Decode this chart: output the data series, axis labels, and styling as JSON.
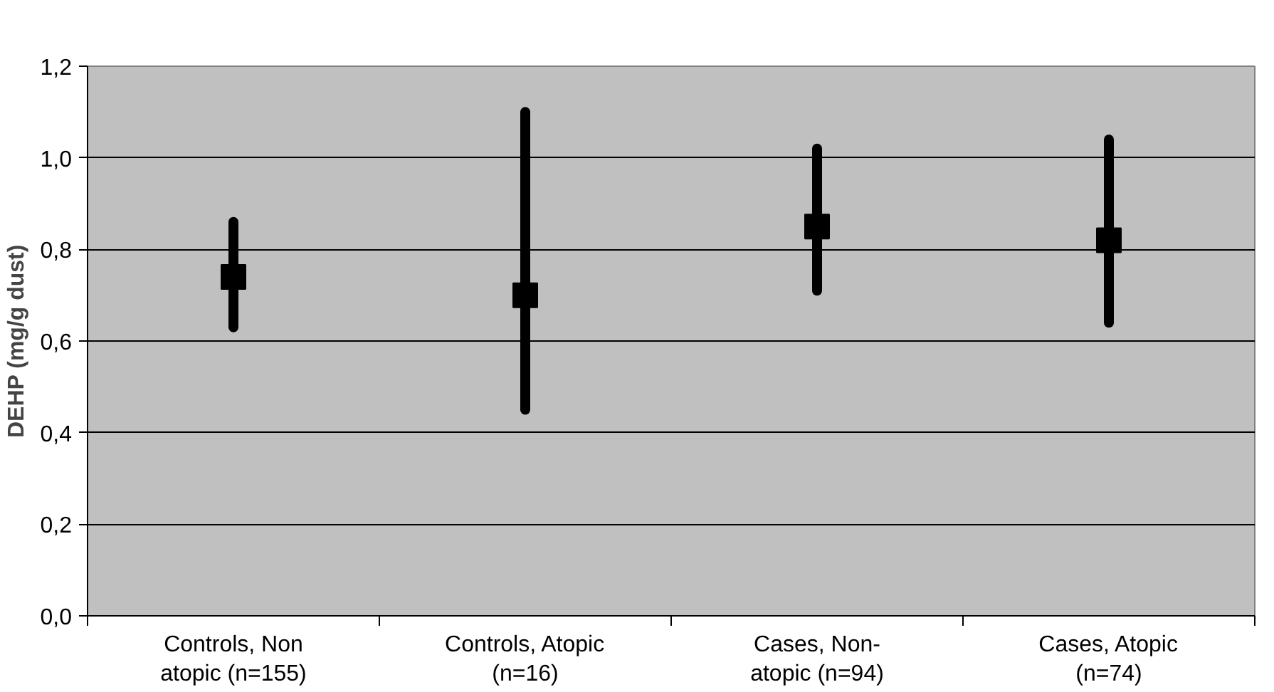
{
  "chart_data": {
    "type": "scatter",
    "ylabel": "DEHP (mg/g dust)",
    "categories": [
      "Controls, Non atopic (n=155)",
      "Controls, Atopic (n=16)",
      "Cases, Non-atopic (n=94)",
      "Cases, Atopic (n=74)"
    ],
    "series": [
      {
        "color": "#000000",
        "values": [
          0.74,
          0.7,
          0.85,
          0.82
        ],
        "errors": [
          [
            0.63,
            0.86
          ],
          [
            0.45,
            1.1
          ],
          [
            0.71,
            1.02
          ],
          [
            0.64,
            1.04
          ]
        ]
      }
    ],
    "ylim": [
      0,
      1.2
    ],
    "yticks": [
      {
        "value": 0,
        "label": "0,0"
      },
      {
        "value": 0.2,
        "label": "0,2"
      },
      {
        "value": 0.4,
        "label": "0,4"
      },
      {
        "value": 0.6,
        "label": "0,6"
      },
      {
        "value": 0.8,
        "label": "0,8"
      },
      {
        "value": 1.0,
        "label": "1,0"
      },
      {
        "value": 1.2,
        "label": "1,2"
      }
    ],
    "grid": "y",
    "marker": "square"
  }
}
